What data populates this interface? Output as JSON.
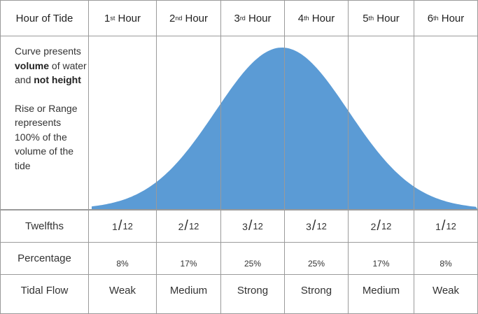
{
  "header": {
    "label": "Hour of Tide",
    "hours": [
      {
        "num": "1",
        "suffix": "st",
        "word": "Hour"
      },
      {
        "num": "2",
        "suffix": "nd",
        "word": "Hour"
      },
      {
        "num": "3",
        "suffix": "rd",
        "word": "Hour"
      },
      {
        "num": "4",
        "suffix": "th",
        "word": "Hour"
      },
      {
        "num": "5",
        "suffix": "th",
        "word": "Hour"
      },
      {
        "num": "6",
        "suffix": "th",
        "word": "Hour"
      }
    ]
  },
  "description": {
    "line1_pre": "Curve presents ",
    "line1_bold1": "volume",
    "line1_mid": " of water and ",
    "line1_bold2": "not height",
    "line2": "Rise or Range represents 100% of the volume of the tide"
  },
  "curve": {
    "fill_color": "#5b9bd5"
  },
  "rows": {
    "twelfths": {
      "label": "Twelfths",
      "values": [
        {
          "num": "1",
          "den": "12"
        },
        {
          "num": "2",
          "den": "12"
        },
        {
          "num": "3",
          "den": "12"
        },
        {
          "num": "3",
          "den": "12"
        },
        {
          "num": "2",
          "den": "12"
        },
        {
          "num": "1",
          "den": "12"
        }
      ]
    },
    "percentage": {
      "label": "Percentage",
      "values": [
        "8%",
        "17%",
        "25%",
        "25%",
        "17%",
        "8%"
      ]
    },
    "tidal_flow": {
      "label": "Tidal Flow",
      "values": [
        "Weak",
        "Medium",
        "Strong",
        "Strong",
        "Medium",
        "Weak"
      ]
    }
  }
}
